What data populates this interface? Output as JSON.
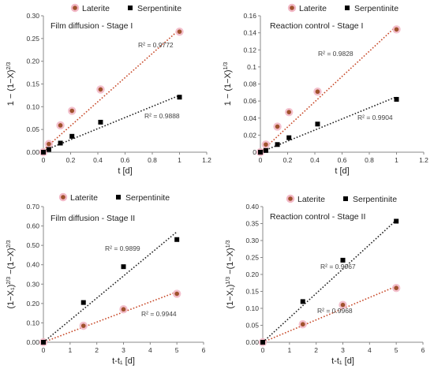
{
  "colors": {
    "laterite": "#a0522d",
    "laterite_halo": "#f2b8c6",
    "laterite_fit": "#c84a2a",
    "serpentinite": "#000000",
    "serpentinite_fit": "#222222",
    "axis": "#888888"
  },
  "chart_data": [
    {
      "type": "scatter",
      "title": "Film diffusion - Stage I",
      "xlabel": "t [d]",
      "ylabel": "1 − (1−X)^{2/3}",
      "xlim": [
        0,
        1.2
      ],
      "ylim": [
        0,
        0.3
      ],
      "xticks": [
        0,
        0.2,
        0.4,
        0.6,
        0.8,
        1,
        1.2
      ],
      "yticks": [
        0,
        0.05,
        0.1,
        0.15,
        0.2,
        0.25,
        0.3
      ],
      "xtick_labels": [
        "0",
        "0.2",
        "0.4",
        "0.6",
        "0.8",
        "1",
        "1.2"
      ],
      "ytick_labels": [
        "0.00",
        "0.05",
        "0.10",
        "0.15",
        "0.20",
        "0.25",
        "0.30"
      ],
      "legend": "top",
      "series": [
        {
          "name": "Laterite",
          "x": [
            0,
            0.04,
            0.125,
            0.21,
            0.42,
            1.0
          ],
          "y": [
            0,
            0.018,
            0.059,
            0.091,
            0.138,
            0.265
          ],
          "fit": [
            [
              0,
              0.005
            ],
            [
              1.0,
              0.27
            ]
          ],
          "r2": "R² = 0.9772"
        },
        {
          "name": "Serpentinite",
          "x": [
            0,
            0.04,
            0.125,
            0.21,
            0.42,
            1.0
          ],
          "y": [
            0,
            0.006,
            0.02,
            0.035,
            0.066,
            0.121
          ],
          "fit": [
            [
              0,
              0.003
            ],
            [
              1.0,
              0.125
            ]
          ],
          "r2": "R² = 0.9888"
        }
      ]
    },
    {
      "type": "scatter",
      "title": "Reaction control - Stage I",
      "xlabel": "t [d]",
      "ylabel": "1 − (1−X)^{1/3}",
      "xlim": [
        0,
        1.2
      ],
      "ylim": [
        0,
        0.16
      ],
      "xticks": [
        0,
        0.2,
        0.4,
        0.6,
        0.8,
        1,
        1.2
      ],
      "yticks": [
        0,
        0.02,
        0.04,
        0.06,
        0.08,
        0.1,
        0.12,
        0.14,
        0.16
      ],
      "xtick_labels": [
        "0",
        "0.2",
        "0.4",
        "0.6",
        "0.8",
        "1",
        "1.2"
      ],
      "ytick_labels": [
        "0",
        "0.02",
        "0.04",
        "0.06",
        "0.08",
        "0.1",
        "0.12",
        "0.14",
        "0.16"
      ],
      "legend": "top",
      "series": [
        {
          "name": "Laterite",
          "x": [
            0,
            0.04,
            0.125,
            0.21,
            0.42,
            1.0
          ],
          "y": [
            0,
            0.009,
            0.03,
            0.047,
            0.071,
            0.144
          ],
          "fit": [
            [
              0,
              0.0
            ],
            [
              1.0,
              0.148
            ]
          ],
          "r2": "R² = 0.9828"
        },
        {
          "name": "Serpentinite",
          "x": [
            0,
            0.04,
            0.125,
            0.21,
            0.42,
            1.0
          ],
          "y": [
            0,
            0.002,
            0.009,
            0.017,
            0.033,
            0.062
          ],
          "fit": [
            [
              0,
              0.0
            ],
            [
              1.0,
              0.065
            ]
          ],
          "r2": "R² = 0.9904"
        }
      ]
    },
    {
      "type": "scatter",
      "title": "Film diffusion - Stage II",
      "xlabel": "t-t₁ [d]",
      "ylabel": "(1−X₁)^{2/3} −(1−X)^{2/3}",
      "xlim": [
        0,
        6
      ],
      "ylim": [
        0,
        0.7
      ],
      "xticks": [
        0,
        1,
        2,
        3,
        4,
        5,
        6
      ],
      "yticks": [
        0,
        0.1,
        0.2,
        0.3,
        0.4,
        0.5,
        0.6,
        0.7
      ],
      "xtick_labels": [
        "0",
        "1",
        "2",
        "3",
        "4",
        "5",
        "6"
      ],
      "ytick_labels": [
        "0.00",
        "0.10",
        "0.20",
        "0.30",
        "0.40",
        "0.50",
        "0.60",
        "0.70"
      ],
      "legend": "top",
      "series": [
        {
          "name": "Laterite",
          "x": [
            0,
            1.5,
            3.0,
            5.0
          ],
          "y": [
            0,
            0.085,
            0.17,
            0.25
          ],
          "fit": [
            [
              0,
              0.0
            ],
            [
              5.0,
              0.26
            ]
          ],
          "r2": "R² = 0.9944"
        },
        {
          "name": "Serpentinite",
          "x": [
            0,
            1.5,
            3.0,
            5.0
          ],
          "y": [
            0,
            0.205,
            0.39,
            0.53
          ],
          "fit": [
            [
              0,
              0.0
            ],
            [
              5.0,
              0.57
            ]
          ],
          "r2": "R² = 0.9899"
        }
      ]
    },
    {
      "type": "scatter",
      "title": "Reaction control - Stage II",
      "xlabel": "t-t₁ [d]",
      "ylabel": "(1−X₁)^{1/3} −(1−X)^{1/3}",
      "xlim": [
        0,
        6
      ],
      "ylim": [
        0,
        0.4
      ],
      "xticks": [
        0,
        1,
        2,
        3,
        4,
        5,
        6
      ],
      "yticks": [
        0,
        0.05,
        0.1,
        0.15,
        0.2,
        0.25,
        0.3,
        0.35,
        0.4
      ],
      "xtick_labels": [
        "0",
        "1",
        "2",
        "3",
        "4",
        "5",
        "6"
      ],
      "ytick_labels": [
        "0.00",
        "0.05",
        "0.10",
        "0.15",
        "0.20",
        "0.25",
        "0.30",
        "0.35",
        "0.40"
      ],
      "legend": "top",
      "series": [
        {
          "name": "Laterite",
          "x": [
            0,
            1.5,
            3.0,
            5.0
          ],
          "y": [
            0,
            0.053,
            0.11,
            0.16
          ],
          "fit": [
            [
              0,
              0.0
            ],
            [
              5.0,
              0.165
            ]
          ],
          "r2": "R² = 0.9968"
        },
        {
          "name": "Serpentinite",
          "x": [
            0,
            1.5,
            3.0,
            5.0
          ],
          "y": [
            0,
            0.12,
            0.242,
            0.357
          ],
          "fit": [
            [
              0,
              0.0
            ],
            [
              5.0,
              0.36
            ]
          ],
          "r2": "R² = 0.9967"
        }
      ]
    }
  ]
}
